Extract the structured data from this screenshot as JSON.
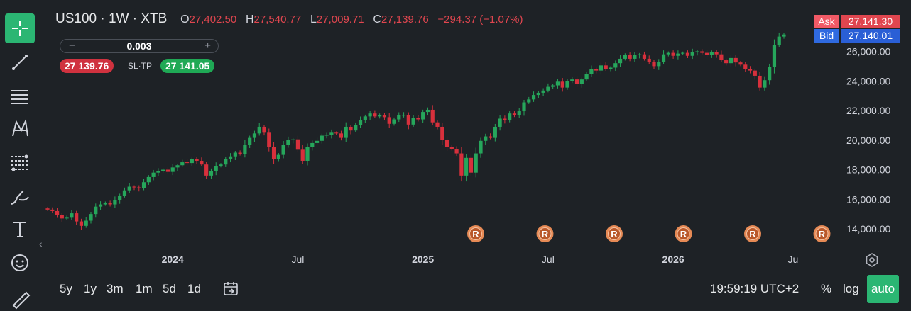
{
  "header": {
    "symbol": "US100 · 1W · XTB",
    "open_label": "O",
    "open": "27,402.50",
    "high_label": "H",
    "high": "27,540.77",
    "low_label": "L",
    "low": "27,009.71",
    "close_label": "C",
    "close": "27,139.76",
    "change": "−294.37 (−1.07%)"
  },
  "order": {
    "minus": "−",
    "volume": "0.003",
    "plus": "+",
    "sell_price": "27 139.76",
    "sltp": "SL·TP",
    "buy_price": "27 141.05"
  },
  "quote": {
    "ask_label": "Ask",
    "ask": "27,141.30",
    "bid_label": "Bid",
    "bid": "27,140.01"
  },
  "bottom": {
    "ranges": [
      "5y",
      "1y",
      "3m",
      "1m",
      "5d",
      "1d"
    ],
    "clock": "19:59:19 UTC+2",
    "percent": "%",
    "log": "log",
    "auto": "auto"
  },
  "icons": [
    "crosshair-icon",
    "trend-line-icon",
    "horizontal-lines-icon",
    "pattern-icon",
    "fib-levels-icon",
    "brush-icon",
    "text-icon",
    "emoji-icon",
    "ruler-icon"
  ],
  "colors": {
    "up": "#26a65b",
    "down": "#d7303c",
    "accent": "#2bb673",
    "background": "#1e2226"
  },
  "chart_data": {
    "type": "candlestick",
    "interval": "1W",
    "y_ticks": [
      "14,000.00",
      "16,000.00",
      "18,000.00",
      "20,000.00",
      "22,000.00",
      "24,000.00",
      "26,000.00"
    ],
    "x_ticks": [
      "2024",
      "Jul",
      "2025",
      "Jul",
      "2026",
      "Ju"
    ],
    "ylim": [
      13200,
      27800
    ],
    "last_price": 27139.76,
    "marker_label": "R",
    "marker_count": 6,
    "closes": [
      15300,
      15200,
      14950,
      14700,
      14750,
      15050,
      14500,
      14200,
      14550,
      15000,
      15500,
      15650,
      15750,
      15650,
      15950,
      16250,
      16600,
      16850,
      16800,
      16750,
      17150,
      17500,
      17800,
      17900,
      18000,
      17850,
      18150,
      18300,
      18500,
      18450,
      18700,
      18600,
      18350,
      17600,
      17900,
      18250,
      18350,
      18700,
      18900,
      19150,
      19050,
      19700,
      20150,
      20450,
      20900,
      20500,
      19550,
      18700,
      19000,
      19700,
      20000,
      20050,
      19350,
      18600,
      19550,
      19800,
      19950,
      20300,
      20350,
      20500,
      20450,
      20150,
      20900,
      20650,
      21000,
      21350,
      21600,
      21800,
      21600,
      21700,
      21550,
      21100,
      21400,
      21700,
      21700,
      21050,
      21500,
      21400,
      21900,
      22050,
      21200,
      20900,
      20000,
      19550,
      19400,
      19100,
      17600,
      18800,
      17800,
      19100,
      19950,
      20250,
      20150,
      20900,
      21450,
      21350,
      21800,
      21700,
      21950,
      22550,
      22750,
      23050,
      23200,
      23350,
      23600,
      23700,
      23950,
      23550,
      24000,
      24100,
      23800,
      24100,
      24450,
      24800,
      24700,
      25050,
      24800,
      24900,
      25200,
      25500,
      25750,
      25500,
      25750,
      25800,
      25500,
      25300,
      25000,
      25300,
      25800,
      25900,
      25700,
      25850,
      25900,
      25700,
      25950,
      26000,
      25900,
      25750,
      25950,
      25800,
      25400,
      25200,
      25550,
      25250,
      25100,
      24800,
      24700,
      24350,
      23550,
      24050,
      24950,
      26450,
      27000,
      27140
    ]
  }
}
